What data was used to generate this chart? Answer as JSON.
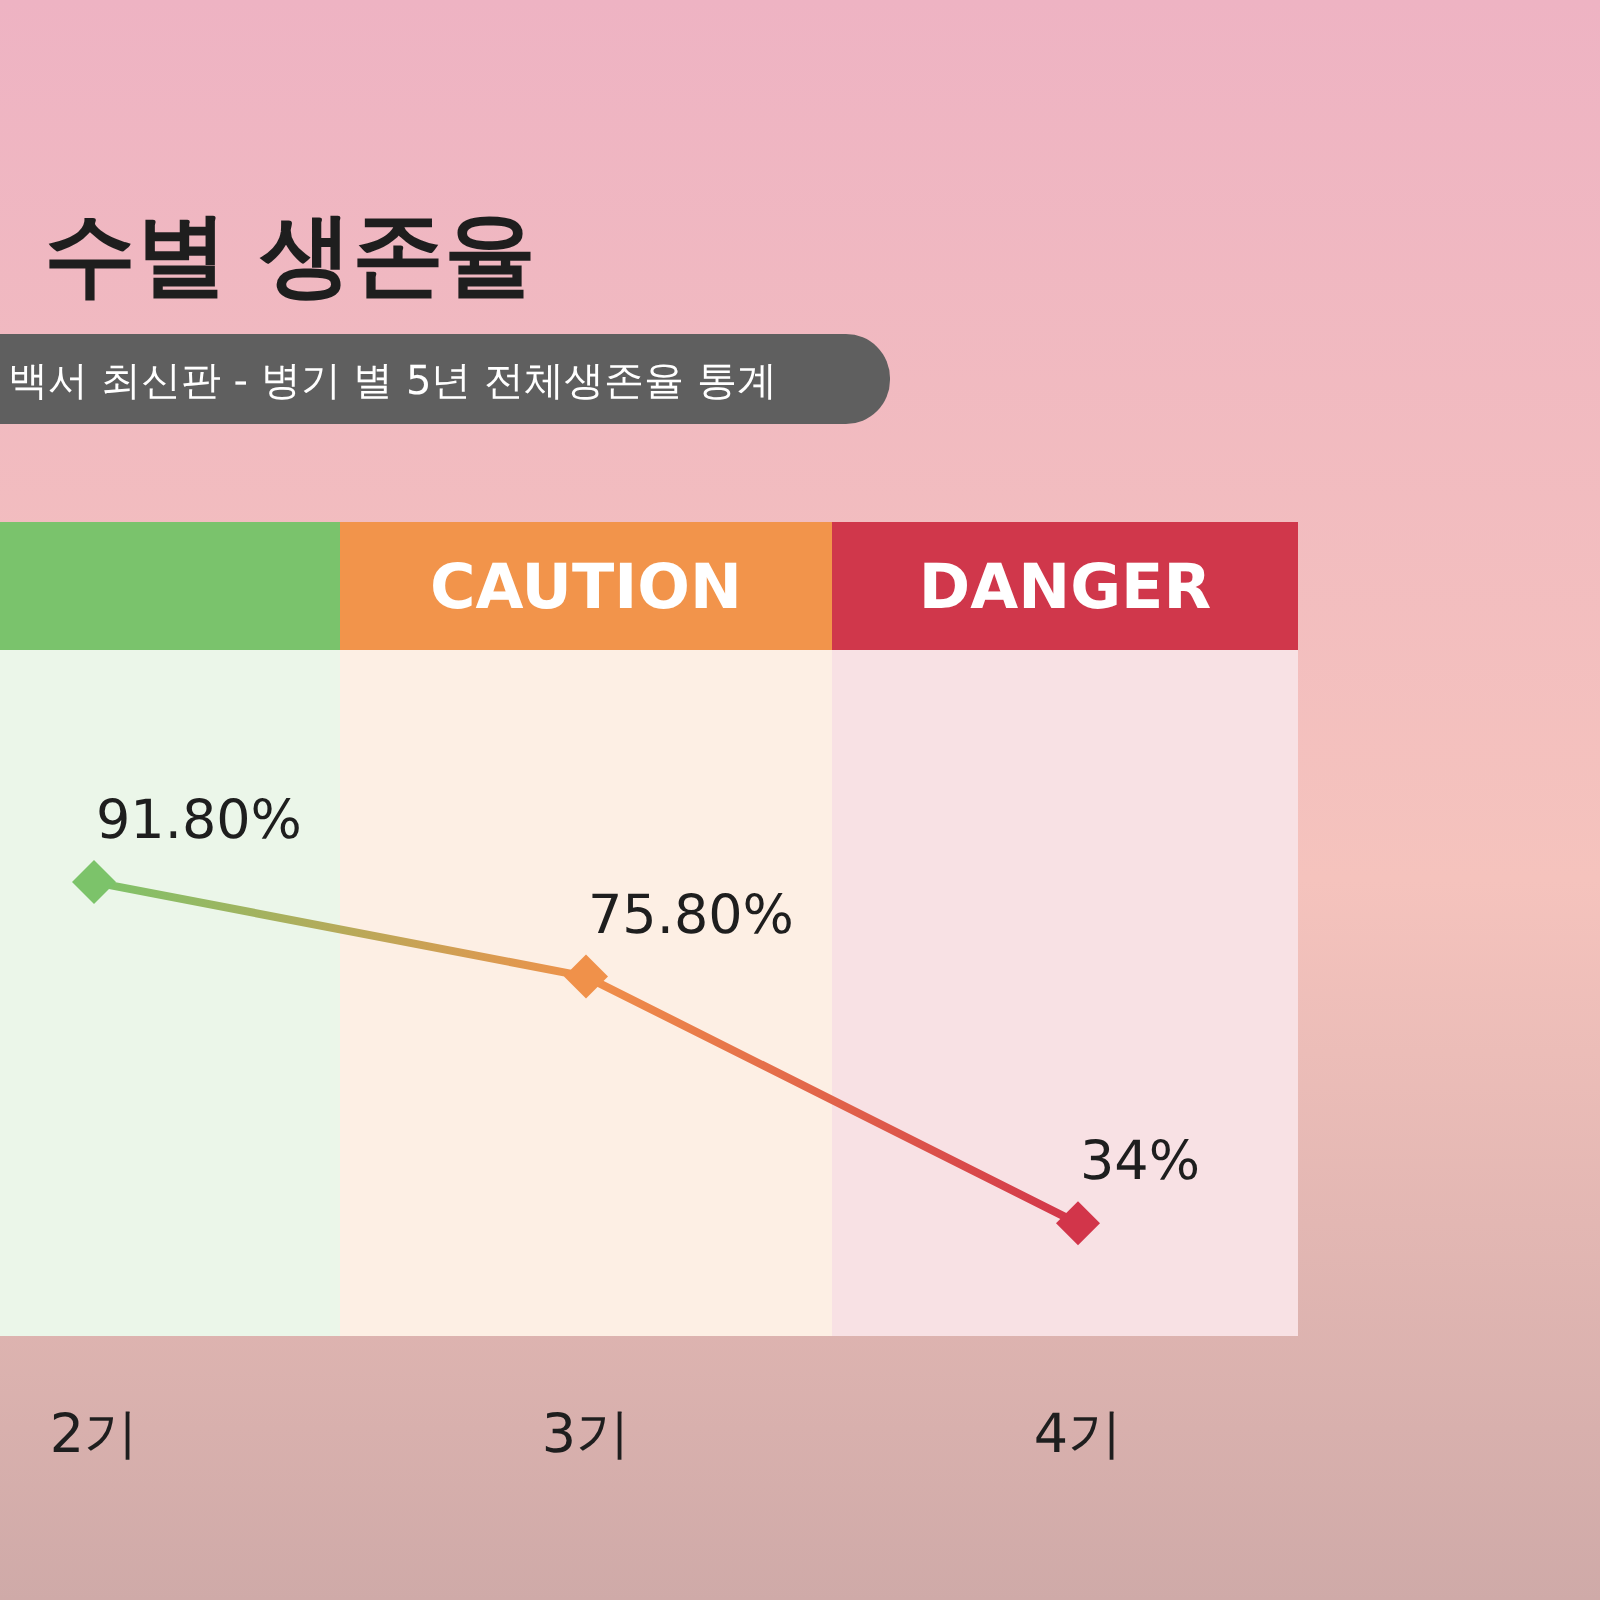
{
  "chart_data": {
    "type": "line",
    "title": "수별 생존율",
    "subtitle": "백서 최신판 - 병기 별 5년 전체생존율 통계",
    "categories": [
      "2기",
      "3기",
      "4기"
    ],
    "series": [
      {
        "values": [
          91.8,
          75.8,
          34
        ],
        "colors": [
          "#7cc36a",
          "#f0914a",
          "#d2354a"
        ],
        "value_labels": [
          "91.80%",
          "75.80%",
          "34%"
        ]
      }
    ],
    "marker": "diamond",
    "bands": [
      {
        "axis": "x",
        "from": "2기",
        "to": "2기",
        "color": "#ebf6e9"
      },
      {
        "axis": "x",
        "from": "3기",
        "to": "3기",
        "label": "CAUTION",
        "color": "#fdefe4"
      },
      {
        "axis": "x",
        "from": "4기",
        "to": "4기",
        "label": "DANGER",
        "color": "#f8e1e4"
      }
    ]
  }
}
